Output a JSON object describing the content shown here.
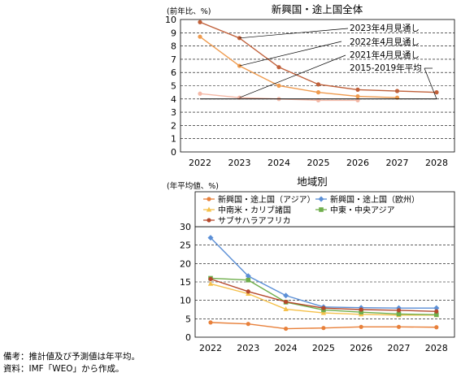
{
  "chart_data": [
    {
      "type": "line",
      "title": "新興国・途上国全体",
      "ylabel": "(前年比、%)",
      "xlabel": "",
      "x": [
        "2022",
        "2023",
        "2024",
        "2025",
        "2026",
        "2027",
        "2028"
      ],
      "ylim": [
        0,
        10
      ],
      "yticks": [
        "0",
        "1",
        "2",
        "3",
        "4",
        "5",
        "6",
        "7",
        "8",
        "9",
        "10"
      ],
      "grid": "horizontal-dashed",
      "series": [
        {
          "name": "2023年4月見通し",
          "color": "#c0603a",
          "values": [
            9.8,
            8.6,
            6.4,
            5.1,
            4.7,
            4.6,
            4.5
          ]
        },
        {
          "name": "2022年4月見通し",
          "color": "#ef9b4e",
          "values": [
            8.7,
            6.5,
            5.0,
            4.5,
            4.2,
            4.1,
            null
          ]
        },
        {
          "name": "2021年4月見通し",
          "color": "#f4b8a6",
          "values": [
            4.4,
            4.1,
            4.0,
            3.9,
            3.9,
            null,
            null
          ]
        },
        {
          "name": "2015-2019年平均",
          "color": "#000000",
          "values": [
            4.0,
            4.0,
            4.0,
            4.0,
            4.0,
            4.0,
            4.0
          ]
        }
      ]
    },
    {
      "type": "line",
      "title": "地域別",
      "ylabel": "(年平均値、%)",
      "xlabel": "",
      "x": [
        "2022",
        "2023",
        "2024",
        "2025",
        "2026",
        "2027",
        "2028"
      ],
      "ylim": [
        0,
        30
      ],
      "yticks": [
        "0",
        "5",
        "10",
        "15",
        "20",
        "25",
        "30"
      ],
      "grid": "horizontal-dashed",
      "legend": "top",
      "series": [
        {
          "name": "新興国・途上国（アジア）",
          "color": "#e8803a",
          "marker": "circle",
          "values": [
            4.0,
            3.6,
            2.3,
            2.5,
            2.8,
            2.8,
            2.7
          ]
        },
        {
          "name": "新興国・途上国（欧州）",
          "color": "#5b8fd6",
          "marker": "diamond",
          "values": [
            27.0,
            16.6,
            11.3,
            8.2,
            8.0,
            7.9,
            7.9
          ]
        },
        {
          "name": "中南米・カリブ諸国",
          "color": "#f5c04a",
          "marker": "triangle",
          "values": [
            14.5,
            11.8,
            7.6,
            6.6,
            6.2,
            6.0,
            6.0
          ]
        },
        {
          "name": "中東・中央アジア",
          "color": "#6fae4c",
          "marker": "square",
          "values": [
            16.0,
            15.5,
            9.5,
            7.4,
            6.8,
            6.3,
            6.1
          ]
        },
        {
          "name": "サブサハラアフリカ",
          "color": "#b5482c",
          "marker": "circle",
          "values": [
            15.8,
            12.4,
            9.6,
            7.9,
            7.5,
            7.3,
            7.0
          ]
        }
      ]
    }
  ],
  "notes": {
    "line1": "備考：推計値及び予測値は年平均。",
    "line2": "資料：IMF「WEO」から作成。"
  }
}
